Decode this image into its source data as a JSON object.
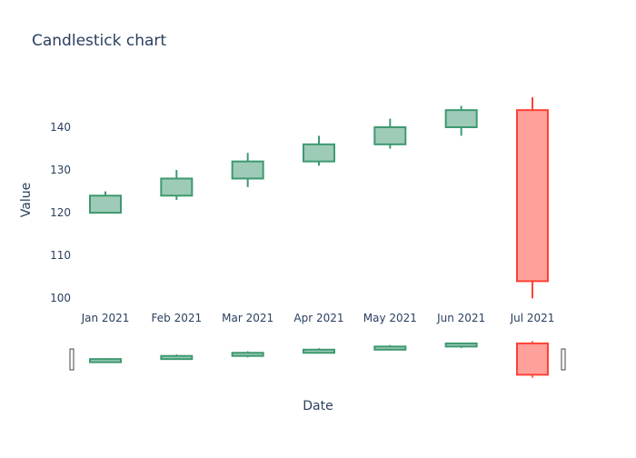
{
  "chart_data": {
    "type": "candlestick",
    "title": "Candlestick chart",
    "xlabel": "Date",
    "ylabel": "Value",
    "ylim": [
      97.5,
      148.5
    ],
    "yticks": [
      100,
      110,
      120,
      130,
      140
    ],
    "grid": false,
    "rangeslider": true,
    "categories": [
      "Jan 2021",
      "Feb 2021",
      "Mar 2021",
      "Apr 2021",
      "May 2021",
      "Jun 2021",
      "Jul 2021"
    ],
    "open": [
      120,
      124,
      128,
      132,
      136,
      140,
      144
    ],
    "high": [
      125,
      130,
      134,
      138,
      142,
      145,
      147
    ],
    "low": [
      120,
      123,
      126,
      131,
      135,
      138,
      100
    ],
    "close": [
      124,
      128,
      132,
      136,
      140,
      144,
      104
    ],
    "increasing_color": "#3D9970",
    "increasing_fill": "#9ecbb7",
    "decreasing_color": "#FF4136",
    "decreasing_fill": "#ffa09b"
  }
}
